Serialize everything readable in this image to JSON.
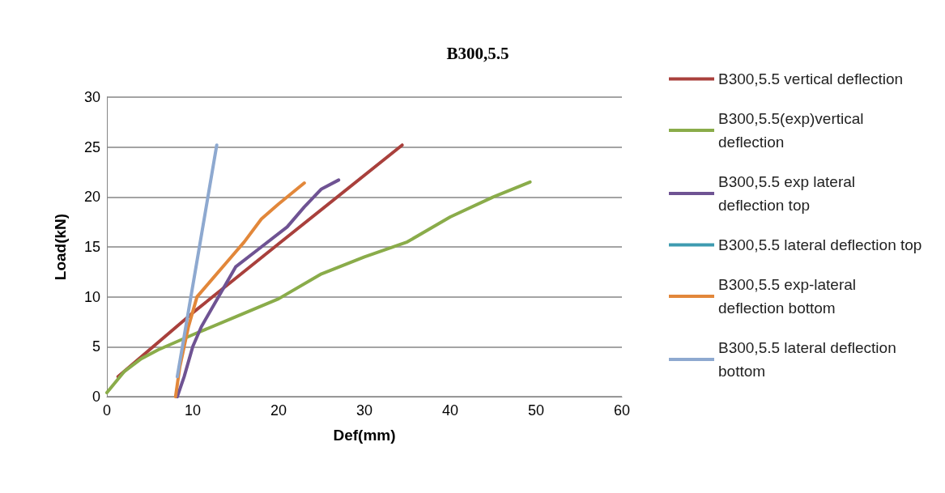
{
  "chart_data": {
    "type": "line",
    "title": "B300,5.5",
    "xlabel": "Def(mm)",
    "ylabel": "Load(kN)",
    "xlim": [
      0,
      60
    ],
    "xticks": [
      0,
      10,
      20,
      30,
      40,
      50,
      60
    ],
    "ylim": [
      0,
      30
    ],
    "yticks": [
      0,
      5,
      10,
      15,
      20,
      25,
      30
    ],
    "grid": "y",
    "legend": "right",
    "marker": "none",
    "line_style": "solid",
    "series": [
      {
        "name": "B300,5.5 vertical deflection",
        "color": "#a9403c",
        "x": [
          1.3,
          10,
          20,
          34.4
        ],
        "values": [
          2,
          8.4,
          15.3,
          25.2
        ]
      },
      {
        "name": "B300,5.5(exp)vertical deflection",
        "color": "#8aac4a",
        "x": [
          0,
          2,
          4,
          6,
          10,
          15,
          20,
          25,
          30,
          35,
          40,
          45,
          49.3
        ],
        "values": [
          0.4,
          2.5,
          3.8,
          4.7,
          6.2,
          8,
          9.8,
          12.3,
          14,
          15.5,
          18,
          20,
          21.5
        ]
      },
      {
        "name": "B300,5.5 exp lateral deflection top",
        "color": "#6f5393",
        "x": [
          8.2,
          9,
          10,
          11,
          13,
          15,
          18,
          21,
          23,
          25,
          27
        ],
        "values": [
          0,
          2,
          5,
          7,
          10,
          13,
          15,
          17,
          19,
          20.8,
          21.7
        ]
      },
      {
        "name": "B300,5.5 lateral deflection top",
        "color": "#3e9bb0"
      },
      {
        "name": "B300,5.5 exp-lateral deflection bottom",
        "color": "#e2873a",
        "x": [
          8,
          8.5,
          9.5,
          10.5,
          12,
          14,
          16,
          18,
          20,
          23
        ],
        "values": [
          0,
          3,
          7,
          10,
          11.5,
          13.5,
          15.5,
          17.8,
          19.3,
          21.4
        ]
      },
      {
        "name": "B300,5.5 lateral deflection bottom",
        "color": "#8ea9d0",
        "x": [
          8.2,
          12.8
        ],
        "values": [
          2,
          25.2
        ]
      }
    ]
  }
}
